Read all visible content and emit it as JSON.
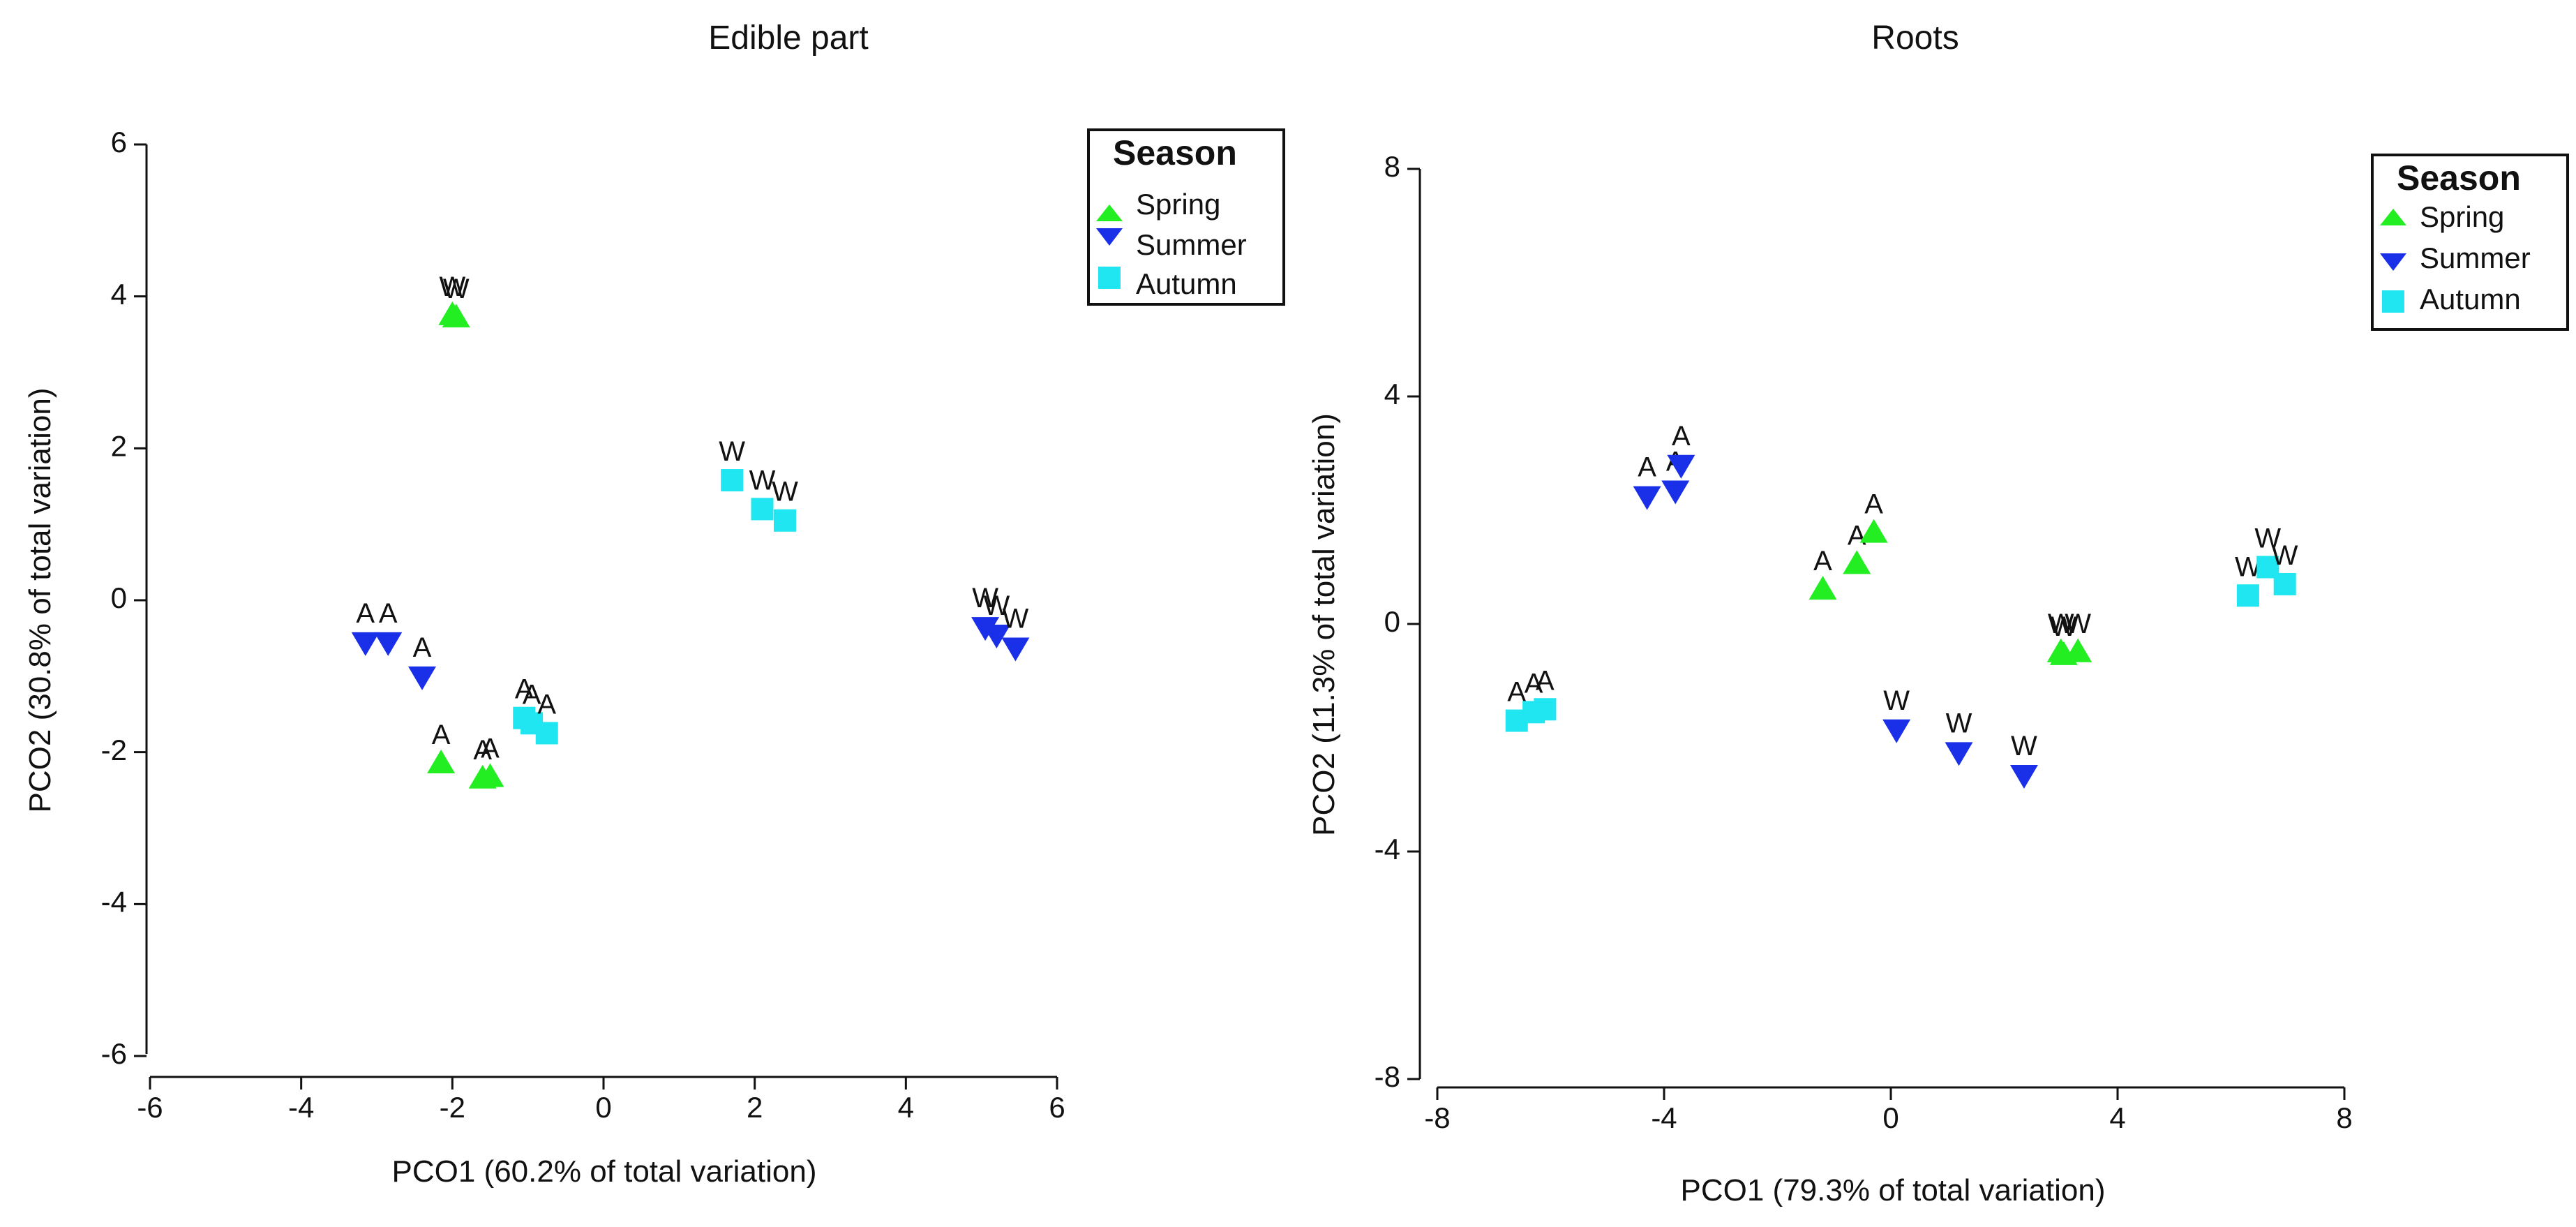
{
  "chart_data": [
    {
      "type": "scatter",
      "title": "Edible part",
      "xlabel": "PCO1 (60.2% of total variation)",
      "ylabel": "PCO2 (30.8% of total variation)",
      "xlim": [
        -6,
        6
      ],
      "ylim": [
        -6,
        6
      ],
      "xticks": [
        -6,
        -4,
        -2,
        0,
        2,
        4,
        6
      ],
      "yticks": [
        -6,
        -4,
        -2,
        0,
        2,
        4,
        6
      ],
      "legend": {
        "title": "Season",
        "placement": "top-right",
        "entries": [
          "Spring",
          "Summer",
          "Autumn"
        ]
      },
      "series": [
        {
          "name": "Spring",
          "marker": "triangle-up",
          "color": "#22ee22",
          "points": [
            {
              "x": -2.0,
              "y": 3.75,
              "label": "W"
            },
            {
              "x": -1.95,
              "y": 3.72,
              "label": "W"
            },
            {
              "x": -2.15,
              "y": -2.15,
              "label": "A"
            },
            {
              "x": -1.6,
              "y": -2.35,
              "label": "A"
            },
            {
              "x": -1.5,
              "y": -2.33,
              "label": "A"
            }
          ]
        },
        {
          "name": "Summer",
          "marker": "triangle-down",
          "color": "#1a2fe8",
          "points": [
            {
              "x": -3.15,
              "y": -0.55,
              "label": "A"
            },
            {
              "x": -2.85,
              "y": -0.55,
              "label": "A"
            },
            {
              "x": -2.4,
              "y": -1.0,
              "label": "A"
            },
            {
              "x": 5.05,
              "y": -0.35,
              "label": "W"
            },
            {
              "x": 5.2,
              "y": -0.45,
              "label": "W"
            },
            {
              "x": 5.45,
              "y": -0.62,
              "label": "W"
            }
          ]
        },
        {
          "name": "Autumn",
          "marker": "square",
          "color": "#1fe6f0",
          "points": [
            {
              "x": 1.7,
              "y": 1.58,
              "label": "W"
            },
            {
              "x": 2.1,
              "y": 1.2,
              "label": "W"
            },
            {
              "x": 2.4,
              "y": 1.05,
              "label": "W"
            },
            {
              "x": -1.05,
              "y": -1.55,
              "label": "A"
            },
            {
              "x": -0.95,
              "y": -1.62,
              "label": "A"
            },
            {
              "x": -0.75,
              "y": -1.75,
              "label": "A"
            }
          ]
        }
      ]
    },
    {
      "type": "scatter",
      "title": "Roots",
      "xlabel": "PCO1 (79.3% of total variation)",
      "ylabel": "PCO2 (11.3% of total variation)",
      "xlim": [
        -8,
        8
      ],
      "ylim": [
        -8,
        8
      ],
      "xticks": [
        -8,
        -4,
        0,
        4,
        8
      ],
      "yticks": [
        -8,
        -4,
        0,
        4,
        8
      ],
      "legend": {
        "title": "Season",
        "placement": "top-right",
        "entries": [
          "Spring",
          "Summer",
          "Autumn"
        ]
      },
      "series": [
        {
          "name": "Spring",
          "marker": "triangle-up",
          "color": "#22ee22",
          "points": [
            {
              "x": -1.2,
              "y": 0.6,
              "label": "A"
            },
            {
              "x": -0.6,
              "y": 1.05,
              "label": "A"
            },
            {
              "x": -0.3,
              "y": 1.6,
              "label": "A"
            },
            {
              "x": 3.0,
              "y": -0.5,
              "label": "W"
            },
            {
              "x": 3.05,
              "y": -0.55,
              "label": "W"
            },
            {
              "x": 3.3,
              "y": -0.5,
              "label": "W"
            }
          ]
        },
        {
          "name": "Summer",
          "marker": "triangle-down",
          "color": "#1a2fe8",
          "points": [
            {
              "x": -4.3,
              "y": 2.25,
              "label": "A"
            },
            {
              "x": -3.8,
              "y": 2.35,
              "label": "A"
            },
            {
              "x": -3.7,
              "y": 2.8,
              "label": "A"
            },
            {
              "x": 0.1,
              "y": -1.85,
              "label": "W"
            },
            {
              "x": 1.2,
              "y": -2.25,
              "label": "W"
            },
            {
              "x": 2.35,
              "y": -2.65,
              "label": "W"
            }
          ]
        },
        {
          "name": "Autumn",
          "marker": "square",
          "color": "#1fe6f0",
          "points": [
            {
              "x": -6.6,
              "y": -1.7,
              "label": "A"
            },
            {
              "x": -6.3,
              "y": -1.55,
              "label": "A"
            },
            {
              "x": -6.1,
              "y": -1.5,
              "label": "A"
            },
            {
              "x": 6.3,
              "y": 0.5,
              "label": "W"
            },
            {
              "x": 6.65,
              "y": 1.0,
              "label": "W"
            },
            {
              "x": 6.95,
              "y": 0.7,
              "label": "W"
            }
          ]
        }
      ]
    }
  ]
}
